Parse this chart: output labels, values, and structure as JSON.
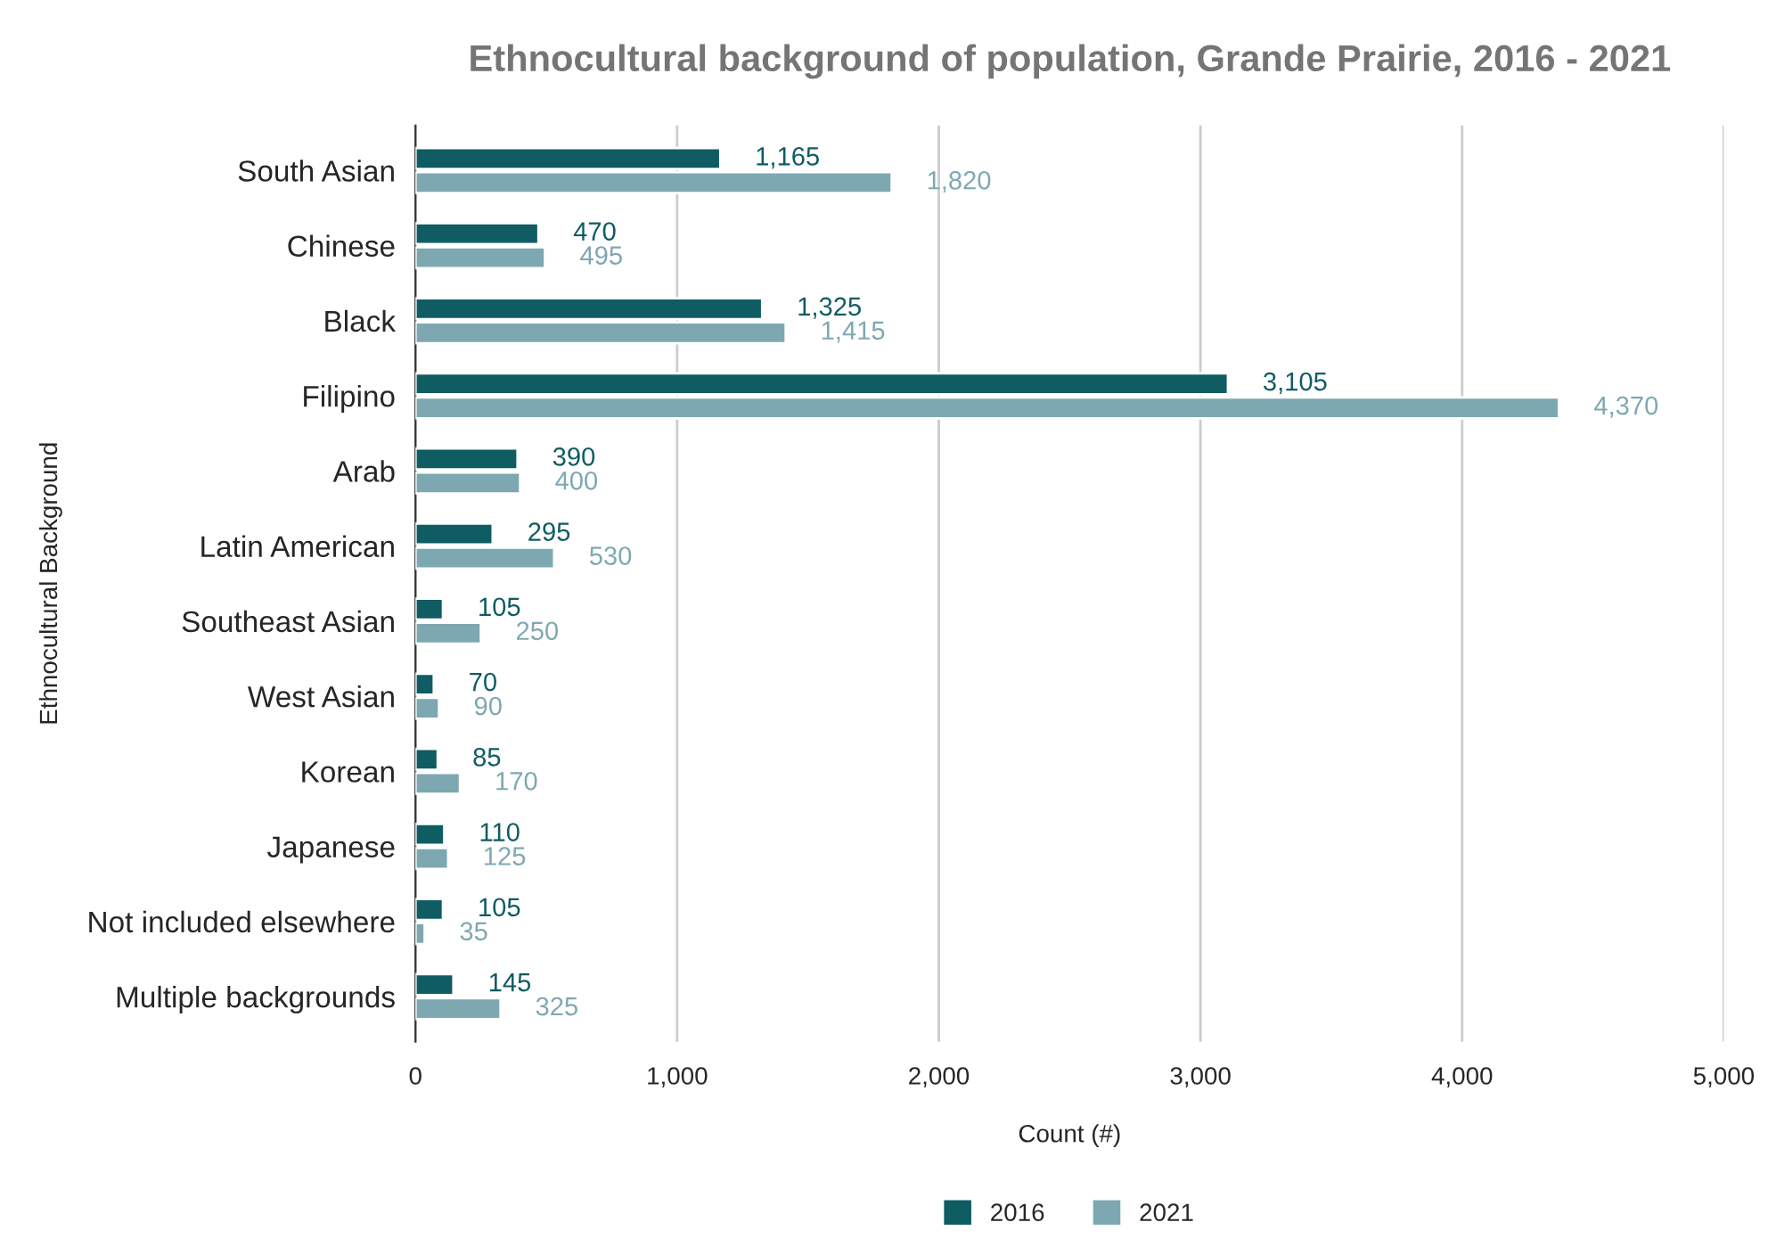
{
  "chart_data": {
    "type": "bar",
    "orientation": "horizontal",
    "title": "Ethnocultural background of population, Grande Prairie, 2016 - 2021",
    "xlabel": "Count (#)",
    "ylabel": "Ethnocultural Background",
    "categories": [
      "South Asian",
      "Chinese",
      "Black",
      "Filipino",
      "Arab",
      "Latin American",
      "Southeast Asian",
      "West Asian",
      "Korean",
      "Japanese",
      "Not included elsewhere",
      "Multiple backgrounds"
    ],
    "series": [
      {
        "name": "2016",
        "color": "#0f5c63",
        "values": [
          1165,
          470,
          1325,
          3105,
          390,
          295,
          105,
          70,
          85,
          110,
          105,
          145
        ],
        "value_labels": [
          "1,165",
          "470",
          "1,325",
          "3,105",
          "390",
          "295",
          "105",
          "70",
          "85",
          "110",
          "105",
          "145"
        ]
      },
      {
        "name": "2021",
        "color": "#7ea8b1",
        "values": [
          1820,
          495,
          1415,
          4370,
          400,
          530,
          250,
          90,
          170,
          125,
          35,
          325
        ],
        "value_labels": [
          "1,820",
          "495",
          "1,415",
          "4,370",
          "400",
          "530",
          "250",
          "90",
          "170",
          "125",
          "35",
          "325"
        ]
      }
    ],
    "xlim": [
      0,
      5000
    ],
    "xticks": [
      0,
      {
        "value": 1000,
        "label": "1,000"
      },
      {
        "value": 2000,
        "label": "2,000"
      },
      {
        "value": 3000,
        "label": "3,000"
      },
      {
        "value": 4000,
        "label": "4,000"
      },
      {
        "value": 5000,
        "label": "5,000"
      }
    ],
    "grid": "x",
    "legend": "bottom"
  }
}
